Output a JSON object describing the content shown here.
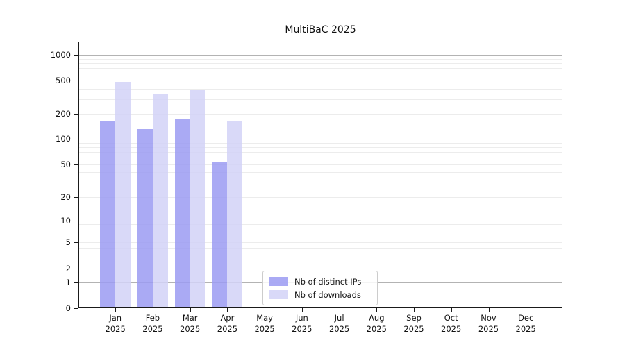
{
  "figure": {
    "title": "MultiBaC 2025",
    "background": "#ffffff"
  },
  "chart_data": {
    "type": "bar",
    "title": "MultiBaC 2025",
    "categories": [
      "Jan 2025",
      "Feb 2025",
      "Mar 2025",
      "Apr 2025",
      "May 2025",
      "Jun 2025",
      "Jul 2025",
      "Aug 2025",
      "Sep 2025",
      "Oct 2025",
      "Nov 2025",
      "Dec 2025"
    ],
    "x_tick_months": [
      "Jan",
      "Feb",
      "Mar",
      "Apr",
      "May",
      "Jun",
      "Jul",
      "Aug",
      "Sep",
      "Oct",
      "Nov",
      "Dec"
    ],
    "x_tick_year": "2025",
    "series": [
      {
        "name": "Nb of distinct IPs",
        "color": "#9b9bf2",
        "values": [
          165,
          130,
          170,
          52,
          null,
          null,
          null,
          null,
          null,
          null,
          null,
          null
        ]
      },
      {
        "name": "Nb of downloads",
        "color": "#d2d2f7",
        "values": [
          485,
          345,
          385,
          165,
          null,
          null,
          null,
          null,
          null,
          null,
          null,
          null
        ]
      }
    ],
    "xlabel": "",
    "ylabel": "",
    "yscale": "symlog-like",
    "yticks": [
      0,
      1,
      2,
      5,
      10,
      20,
      50,
      100,
      200,
      500,
      1000
    ],
    "ytick_labels": [
      "0",
      "1",
      "2",
      "5",
      "10",
      "20",
      "50",
      "100",
      "200",
      "500",
      "1000"
    ],
    "ylim": [
      0,
      1500
    ],
    "grid": {
      "enabled": true,
      "which": "both",
      "major_at": [
        1,
        10,
        100,
        1000
      ],
      "major_color": "#b3b3b3",
      "minor_color": "#ececec"
    },
    "legend": {
      "position": "lower-center-inside",
      "entries": [
        "Nb of distinct IPs",
        "Nb of downloads"
      ]
    }
  }
}
